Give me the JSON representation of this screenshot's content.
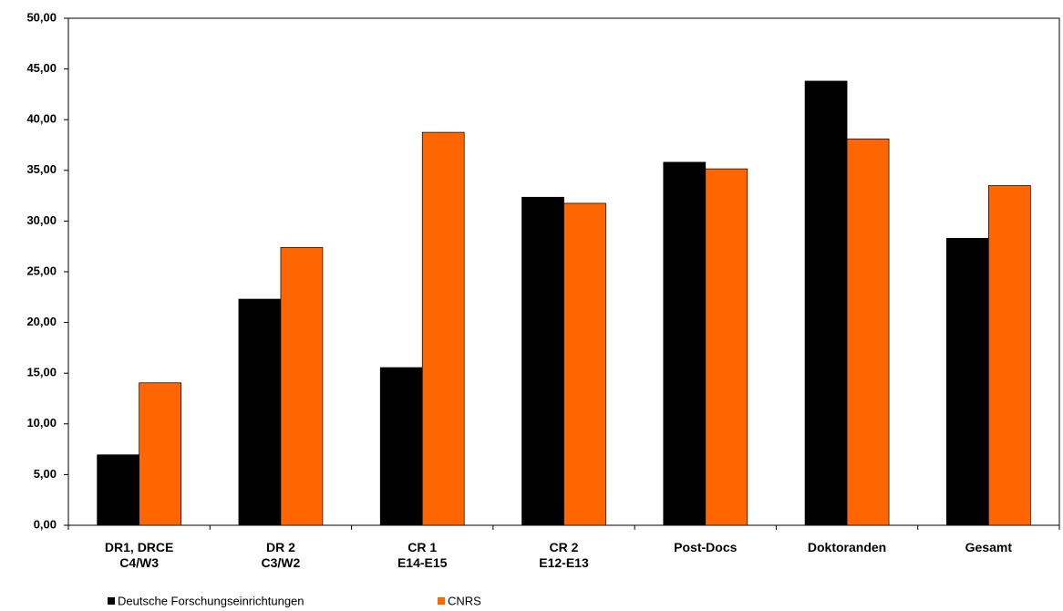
{
  "chart_data": {
    "type": "bar",
    "categories": [
      "DR1, DRCE\nC4/W3",
      "DR 2\nC3/W2",
      "CR 1\nE14-E15",
      "CR 2\nE12-E13",
      "Post-Docs",
      "Doktoranden",
      "Gesamt"
    ],
    "series": [
      {
        "name": "Deutsche Forschungseinrichtungen",
        "color": "#000000",
        "values": [
          6.95,
          22.3,
          15.55,
          32.35,
          35.8,
          43.8,
          28.3
        ]
      },
      {
        "name": "CNRS",
        "color": "#ff6600",
        "values": [
          14.05,
          27.4,
          38.75,
          31.75,
          35.15,
          38.1,
          33.5
        ]
      }
    ],
    "ylim": [
      0,
      50
    ],
    "yticks": [
      {
        "value": 0,
        "label": "0,00"
      },
      {
        "value": 5,
        "label": "5,00"
      },
      {
        "value": 10,
        "label": "10,00"
      },
      {
        "value": 15,
        "label": "15,00"
      },
      {
        "value": 20,
        "label": "20,00"
      },
      {
        "value": 25,
        "label": "25,00"
      },
      {
        "value": 30,
        "label": "30,00"
      },
      {
        "value": 35,
        "label": "35,00"
      },
      {
        "value": 40,
        "label": "40,00"
      },
      {
        "value": 45,
        "label": "45,00"
      },
      {
        "value": 50,
        "label": "50,00"
      }
    ],
    "grid": false,
    "legend": "bottom-left"
  }
}
